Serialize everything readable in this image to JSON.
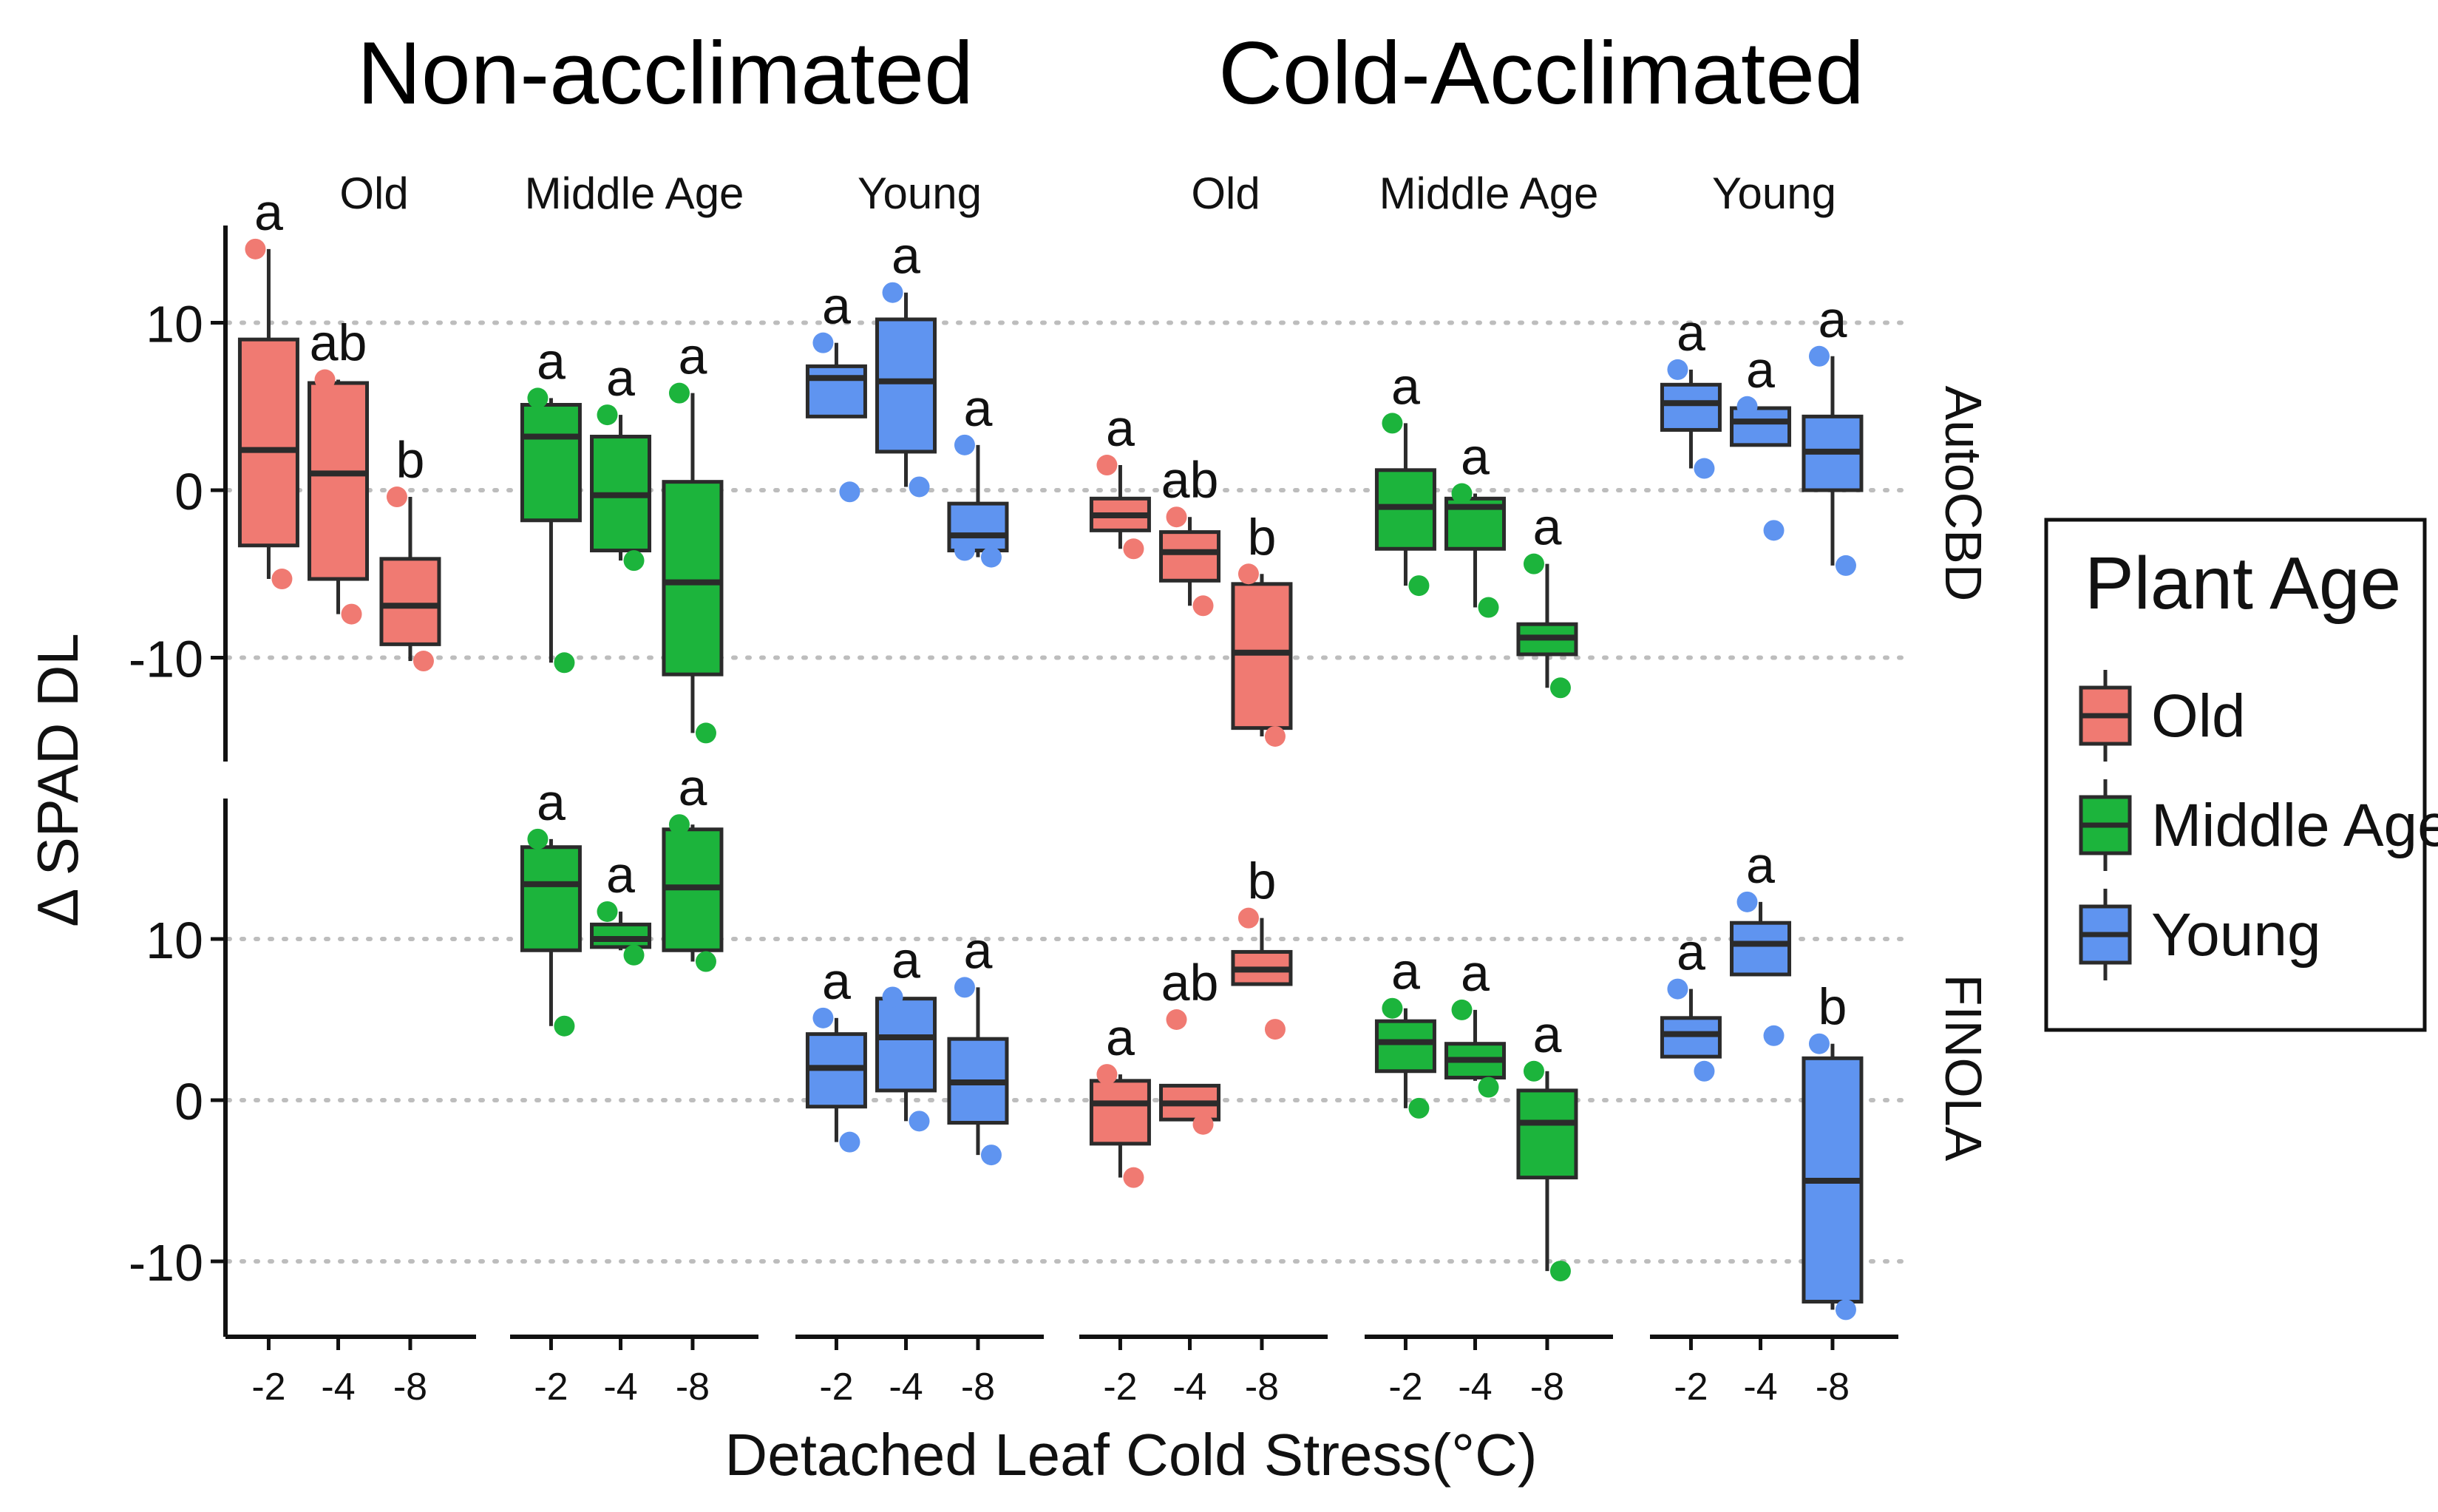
{
  "figure": {
    "super_headers": [
      "Non-acclimated",
      "Cold-Acclimated"
    ],
    "ylabel": "Δ SPAD DL",
    "xlabel": "Detached Leaf Cold Stress(°C)",
    "legend_title": "Plant Age"
  },
  "colors": {
    "Old": "#f07a72",
    "Middle Age": "#1cb43c",
    "Young": "#5f94f0",
    "outline": "#2b2b2b",
    "grid": "#bdbdbd"
  },
  "chart_data": {
    "type": "boxplot",
    "ylim": [
      -15,
      17
    ],
    "yticks": [
      -10,
      0,
      10
    ],
    "x_categories": [
      "-2",
      "-4",
      "-8"
    ],
    "legend": [
      "Old",
      "Middle Age",
      "Young"
    ],
    "facet_columns": [
      {
        "label": "Old",
        "group": "Non-acclimated",
        "age": "Old"
      },
      {
        "label": "Middle Age",
        "group": "Non-acclimated",
        "age": "Middle Age"
      },
      {
        "label": "Young",
        "group": "Non-acclimated",
        "age": "Young"
      },
      {
        "label": "Old",
        "group": "Cold-Acclimated",
        "age": "Old"
      },
      {
        "label": "Middle Age",
        "group": "Cold-Acclimated",
        "age": "Middle Age"
      },
      {
        "label": "Young",
        "group": "Cold-Acclimated",
        "age": "Young"
      }
    ],
    "facet_rows": [
      "AutoCBD",
      "FINOLA"
    ],
    "panels": [
      {
        "row": 0,
        "col": 0,
        "boxes": [
          {
            "x": "-2",
            "min": -5.3,
            "q1": -3.3,
            "median": 2.4,
            "q3": 9.0,
            "max": 14.4,
            "letter": "a",
            "points": [
              14.4,
              -5.3
            ]
          },
          {
            "x": "-4",
            "min": -7.4,
            "q1": -5.3,
            "median": 1.0,
            "q3": 6.4,
            "max": 6.6,
            "letter": "ab",
            "points": [
              6.6,
              -7.4
            ]
          },
          {
            "x": "-8",
            "min": -10.2,
            "q1": -9.2,
            "median": -6.9,
            "q3": -4.1,
            "max": -0.4,
            "letter": "b",
            "points": [
              -0.4,
              -10.2
            ]
          }
        ]
      },
      {
        "row": 0,
        "col": 1,
        "boxes": [
          {
            "x": "-2",
            "min": -10.3,
            "q1": -1.8,
            "median": 3.2,
            "q3": 5.1,
            "max": 5.5,
            "letter": "a",
            "points": [
              5.5,
              -10.3
            ]
          },
          {
            "x": "-4",
            "min": -4.2,
            "q1": -3.6,
            "median": -0.3,
            "q3": 3.2,
            "max": 4.5,
            "letter": "a",
            "points": [
              4.5,
              -4.2
            ]
          },
          {
            "x": "-8",
            "min": -14.5,
            "q1": -11.0,
            "median": -5.5,
            "q3": 0.5,
            "max": 5.8,
            "letter": "a",
            "points": [
              5.8,
              -14.5
            ]
          }
        ]
      },
      {
        "row": 0,
        "col": 2,
        "boxes": [
          {
            "x": "-2",
            "min": 4.4,
            "q1": 4.4,
            "median": 6.7,
            "q3": 7.4,
            "max": 8.8,
            "letter": "a",
            "points": [
              8.8,
              -0.1
            ]
          },
          {
            "x": "-4",
            "min": 0.2,
            "q1": 2.3,
            "median": 6.5,
            "q3": 10.2,
            "max": 11.8,
            "letter": "a",
            "points": [
              11.8,
              0.2
            ]
          },
          {
            "x": "-8",
            "min": -4.0,
            "q1": -3.6,
            "median": -2.7,
            "q3": -0.8,
            "max": 2.7,
            "letter": "a",
            "points": [
              2.7,
              -4.0,
              -3.6
            ]
          }
        ]
      },
      {
        "row": 0,
        "col": 3,
        "boxes": [
          {
            "x": "-2",
            "min": -3.5,
            "q1": -2.4,
            "median": -1.5,
            "q3": -0.5,
            "max": 1.5,
            "letter": "a",
            "points": [
              1.5,
              -3.5
            ]
          },
          {
            "x": "-4",
            "min": -6.9,
            "q1": -5.4,
            "median": -3.7,
            "q3": -2.5,
            "max": -1.6,
            "letter": "ab",
            "points": [
              -1.6,
              -6.9
            ]
          },
          {
            "x": "-8",
            "min": -14.7,
            "q1": -14.2,
            "median": -9.7,
            "q3": -5.6,
            "max": -5.0,
            "letter": "b",
            "points": [
              -5.0,
              -14.7
            ]
          }
        ]
      },
      {
        "row": 0,
        "col": 4,
        "boxes": [
          {
            "x": "-2",
            "min": -5.7,
            "q1": -3.5,
            "median": -1.0,
            "q3": 1.2,
            "max": 4.0,
            "letter": "a",
            "points": [
              4.0,
              -5.7
            ]
          },
          {
            "x": "-4",
            "min": -7.0,
            "q1": -3.5,
            "median": -1.0,
            "q3": -0.5,
            "max": -0.2,
            "letter": "a",
            "points": [
              -0.2,
              -7.0
            ]
          },
          {
            "x": "-8",
            "min": -11.8,
            "q1": -9.8,
            "median": -8.8,
            "q3": -8.0,
            "max": -4.4,
            "letter": "a",
            "points": [
              -4.4,
              -11.8
            ]
          }
        ]
      },
      {
        "row": 0,
        "col": 5,
        "boxes": [
          {
            "x": "-2",
            "min": 1.3,
            "q1": 3.6,
            "median": 5.2,
            "q3": 6.3,
            "max": 7.2,
            "letter": "a",
            "points": [
              7.2,
              1.3
            ]
          },
          {
            "x": "-4",
            "min": 2.7,
            "q1": 2.7,
            "median": 4.1,
            "q3": 4.9,
            "max": 5.0,
            "letter": "a",
            "points": [
              5.0,
              -2.4
            ]
          },
          {
            "x": "-8",
            "min": -4.5,
            "q1": 0.0,
            "median": 2.3,
            "q3": 4.4,
            "max": 8.0,
            "letter": "a",
            "points": [
              8.0,
              -4.5
            ]
          }
        ]
      },
      {
        "row": 1,
        "col": 1,
        "boxes": [
          {
            "x": "-2",
            "min": 4.6,
            "q1": 9.3,
            "median": 13.4,
            "q3": 15.7,
            "max": 16.2,
            "letter": "a",
            "points": [
              16.2,
              4.6
            ]
          },
          {
            "x": "-4",
            "min": 9.3,
            "q1": 9.5,
            "median": 10.0,
            "q3": 10.9,
            "max": 11.7,
            "letter": "a",
            "points": [
              11.7,
              9.0
            ]
          },
          {
            "x": "-8",
            "min": 8.6,
            "q1": 9.3,
            "median": 13.2,
            "q3": 16.8,
            "max": 17.1,
            "letter": "a",
            "points": [
              17.1,
              8.6
            ]
          }
        ]
      },
      {
        "row": 1,
        "col": 2,
        "boxes": [
          {
            "x": "-2",
            "min": -2.6,
            "q1": -0.4,
            "median": 2.0,
            "q3": 4.1,
            "max": 5.1,
            "letter": "a",
            "points": [
              5.1,
              -2.6
            ]
          },
          {
            "x": "-4",
            "min": -1.3,
            "q1": 0.6,
            "median": 3.9,
            "q3": 6.3,
            "max": 6.4,
            "letter": "a",
            "points": [
              6.4,
              -1.3
            ]
          },
          {
            "x": "-8",
            "min": -3.4,
            "q1": -1.4,
            "median": 1.1,
            "q3": 3.8,
            "max": 7.0,
            "letter": "a",
            "points": [
              7.0,
              -3.4
            ]
          }
        ]
      },
      {
        "row": 1,
        "col": 3,
        "boxes": [
          {
            "x": "-2",
            "min": -4.8,
            "q1": -2.7,
            "median": -0.2,
            "q3": 1.2,
            "max": 1.6,
            "letter": "a",
            "points": [
              1.6,
              -4.8
            ]
          },
          {
            "x": "-4",
            "min": -1.2,
            "q1": -1.2,
            "median": -0.2,
            "q3": 0.9,
            "max": 0.9,
            "letter": "ab",
            "points": [
              5.0,
              -1.5
            ]
          },
          {
            "x": "-8",
            "min": 7.2,
            "q1": 7.2,
            "median": 8.1,
            "q3": 9.2,
            "max": 11.3,
            "letter": "b",
            "points": [
              11.3,
              4.4
            ]
          }
        ]
      },
      {
        "row": 1,
        "col": 4,
        "boxes": [
          {
            "x": "-2",
            "min": -0.5,
            "q1": 1.8,
            "median": 3.6,
            "q3": 4.9,
            "max": 5.7,
            "letter": "a",
            "points": [
              5.7,
              -0.5
            ]
          },
          {
            "x": "-4",
            "min": 1.2,
            "q1": 1.4,
            "median": 2.5,
            "q3": 3.5,
            "max": 5.6,
            "letter": "a",
            "points": [
              5.6,
              0.8
            ]
          },
          {
            "x": "-8",
            "min": -10.6,
            "q1": -4.8,
            "median": -1.4,
            "q3": 0.6,
            "max": 1.8,
            "letter": "a",
            "points": [
              1.8,
              -10.6
            ]
          }
        ]
      },
      {
        "row": 1,
        "col": 5,
        "boxes": [
          {
            "x": "-2",
            "min": 2.7,
            "q1": 2.7,
            "median": 4.1,
            "q3": 5.1,
            "max": 6.9,
            "letter": "a",
            "points": [
              6.9,
              1.8
            ]
          },
          {
            "x": "-4",
            "min": 7.8,
            "q1": 7.8,
            "median": 9.7,
            "q3": 11.0,
            "max": 12.3,
            "letter": "a",
            "points": [
              12.3,
              4.0
            ]
          },
          {
            "x": "-8",
            "min": -13.0,
            "q1": -12.5,
            "median": -5.0,
            "q3": 2.6,
            "max": 3.5,
            "letter": "b",
            "points": [
              3.5,
              -13.0
            ]
          }
        ]
      }
    ]
  }
}
